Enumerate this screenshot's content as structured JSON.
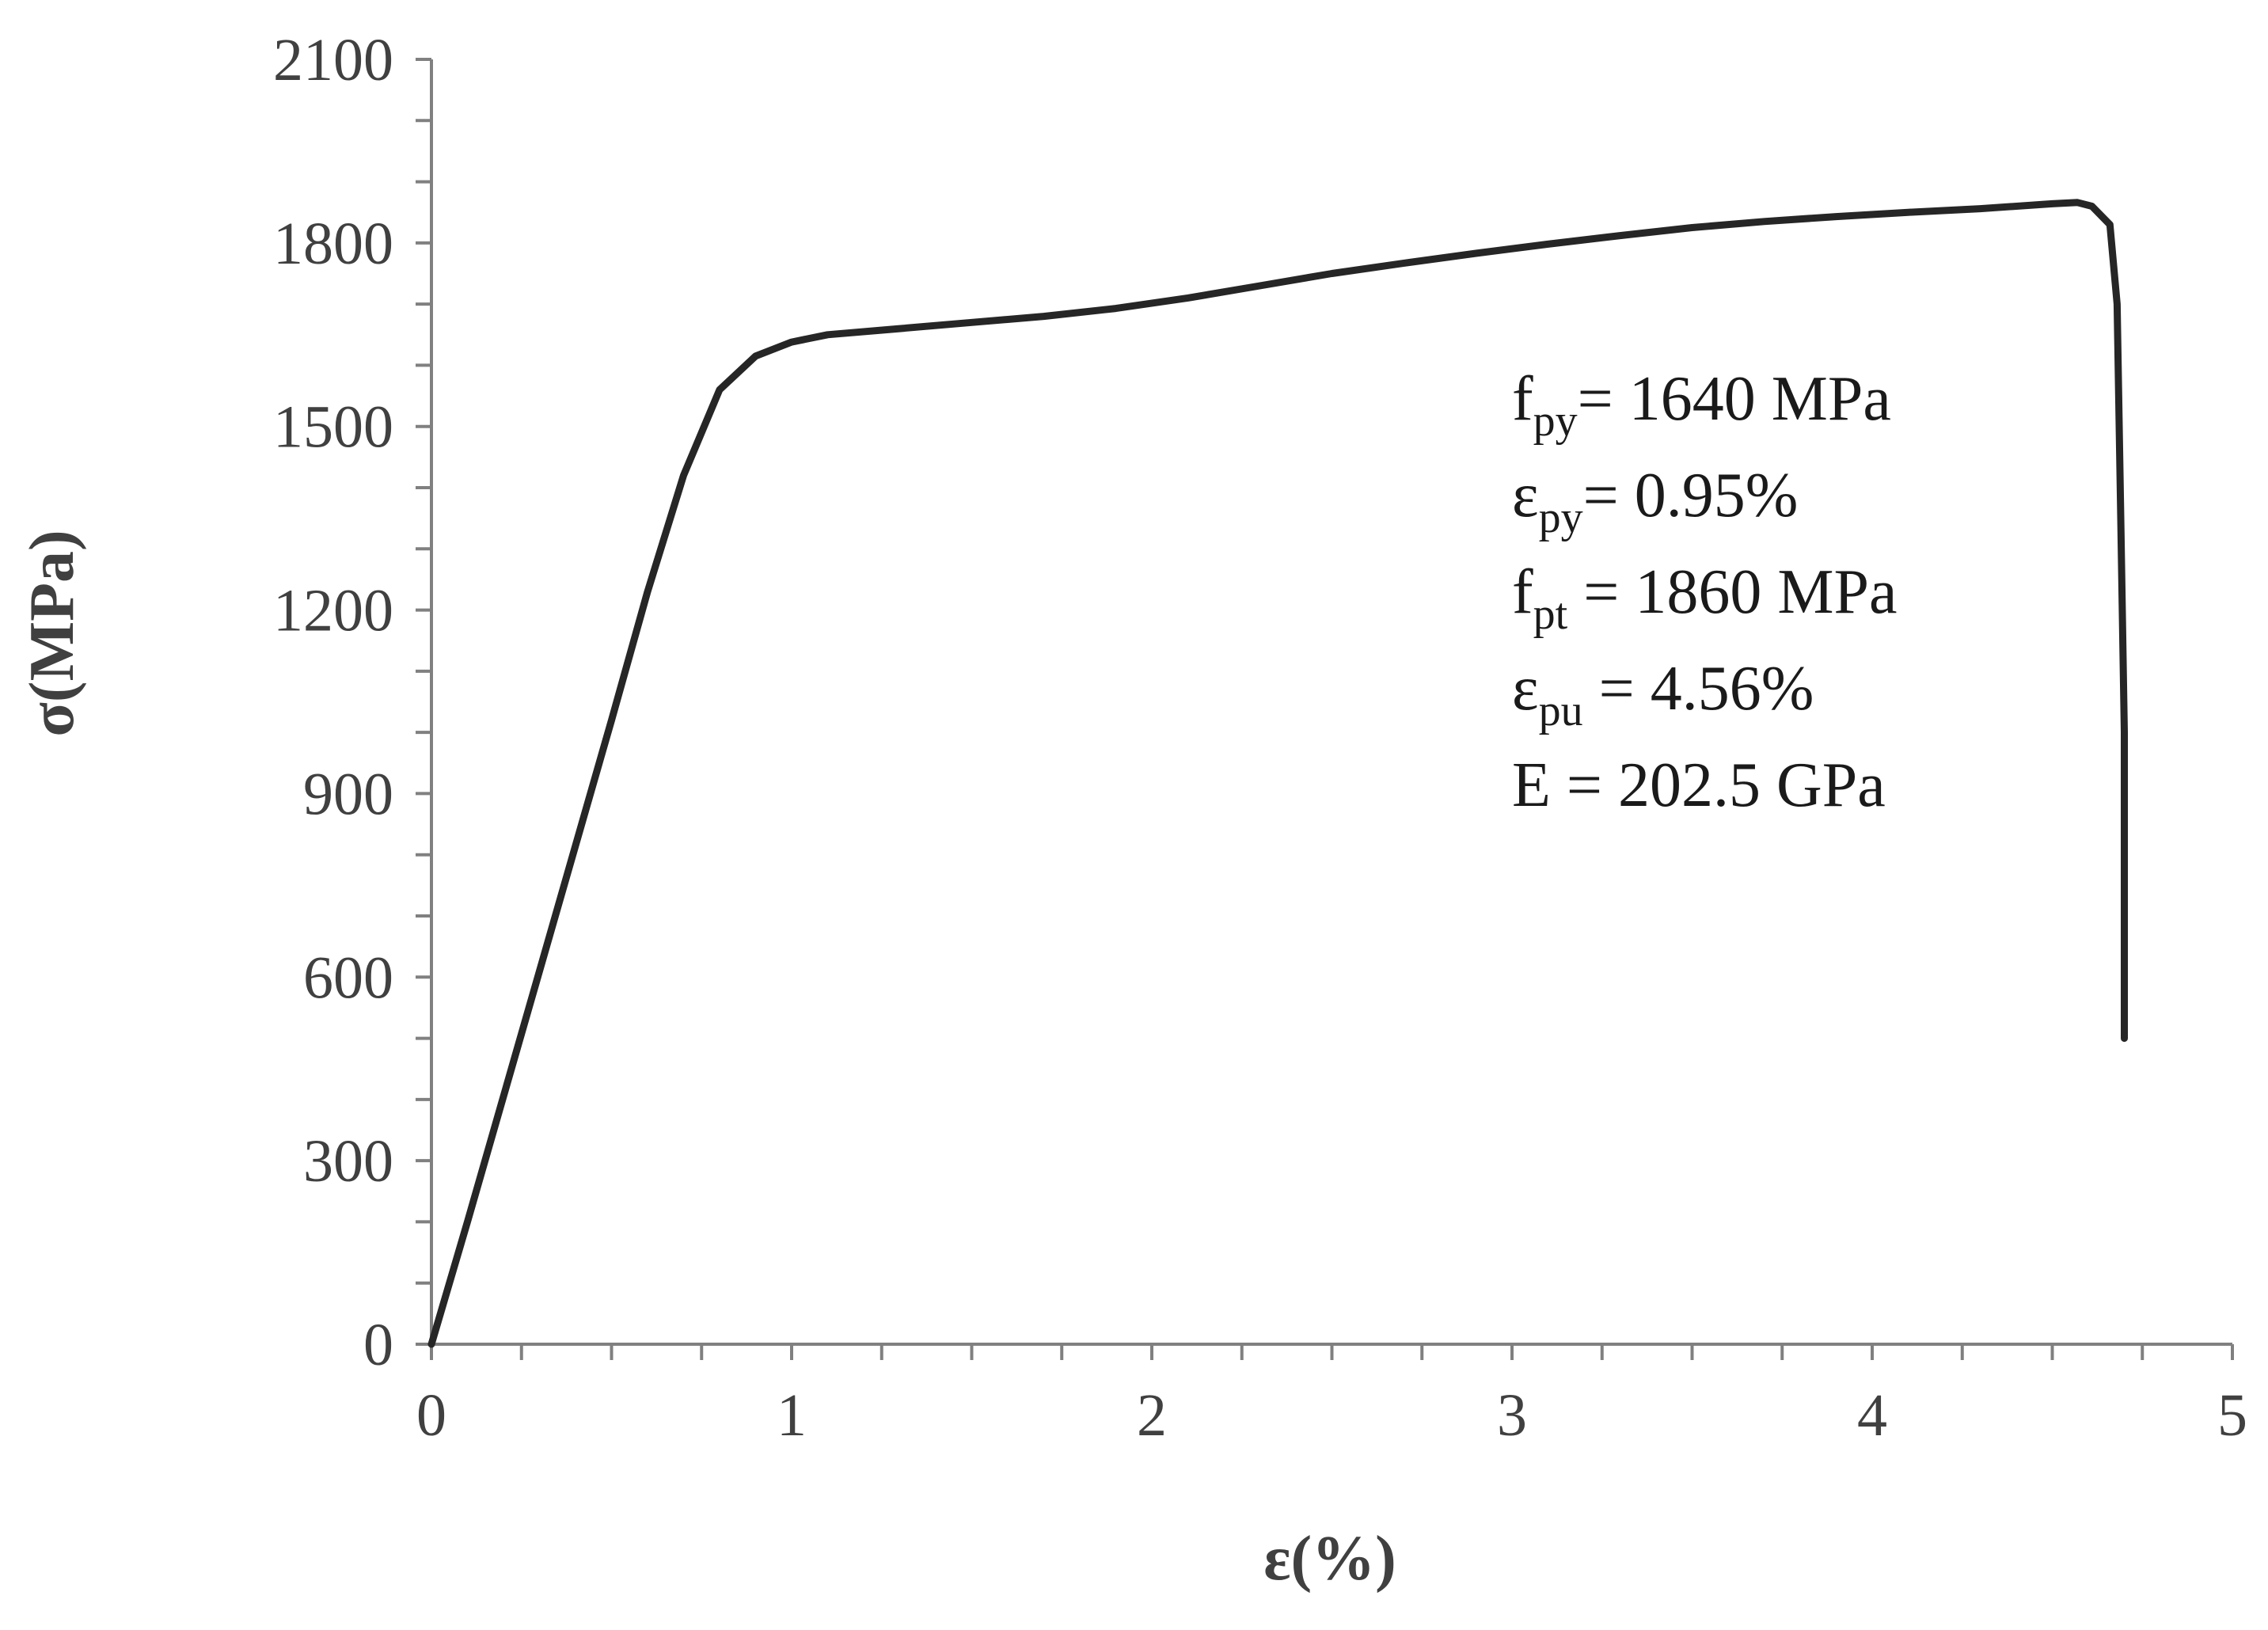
{
  "chart_data": {
    "type": "line",
    "title": "",
    "xlabel": "ε(%)",
    "ylabel": "σ(MPa)",
    "xlim": [
      0,
      5
    ],
    "ylim": [
      0,
      2100
    ],
    "x_ticks": [
      "0",
      "1",
      "2",
      "3",
      "4",
      "5"
    ],
    "y_ticks": [
      "0",
      "300",
      "600",
      "900",
      "1200",
      "1500",
      "1800",
      "2100"
    ],
    "x_minor_step": 0.25,
    "y_minor_step": 100,
    "grid": false,
    "legend": "none",
    "line_color": "#262626",
    "axis_color": "#808080",
    "series": [
      {
        "values": [
          [
            0,
            0
          ],
          [
            0.1,
            200
          ],
          [
            0.2,
            405
          ],
          [
            0.3,
            610
          ],
          [
            0.4,
            815
          ],
          [
            0.5,
            1020
          ],
          [
            0.6,
            1230
          ],
          [
            0.7,
            1420
          ],
          [
            0.8,
            1560
          ],
          [
            0.9,
            1615
          ],
          [
            1.0,
            1638
          ],
          [
            1.1,
            1650
          ],
          [
            1.3,
            1660
          ],
          [
            1.5,
            1670
          ],
          [
            1.7,
            1680
          ],
          [
            1.9,
            1693
          ],
          [
            2.1,
            1710
          ],
          [
            2.3,
            1730
          ],
          [
            2.5,
            1750
          ],
          [
            2.7,
            1767
          ],
          [
            2.9,
            1783
          ],
          [
            3.1,
            1798
          ],
          [
            3.3,
            1812
          ],
          [
            3.5,
            1825
          ],
          [
            3.7,
            1835
          ],
          [
            3.9,
            1843
          ],
          [
            4.1,
            1850
          ],
          [
            4.3,
            1856
          ],
          [
            4.5,
            1864
          ],
          [
            4.57,
            1866
          ],
          [
            4.61,
            1860
          ],
          [
            4.66,
            1830
          ],
          [
            4.68,
            1700
          ],
          [
            4.69,
            1350
          ],
          [
            4.7,
            1000
          ],
          [
            4.7,
            500
          ]
        ]
      }
    ],
    "annotations": [
      {
        "main": "f",
        "sub": "py",
        "rest": "= 1640 MPa"
      },
      {
        "main": "ε",
        "sub": "py",
        "rest": "= 0.95%"
      },
      {
        "main": "f",
        "sub": "pt",
        "rest": " = 1860 MPa"
      },
      {
        "main": "ε",
        "sub": "pu",
        "rest": " = 4.56%"
      },
      {
        "main": "E = 202.5 GPa",
        "sub": "",
        "rest": ""
      }
    ]
  }
}
